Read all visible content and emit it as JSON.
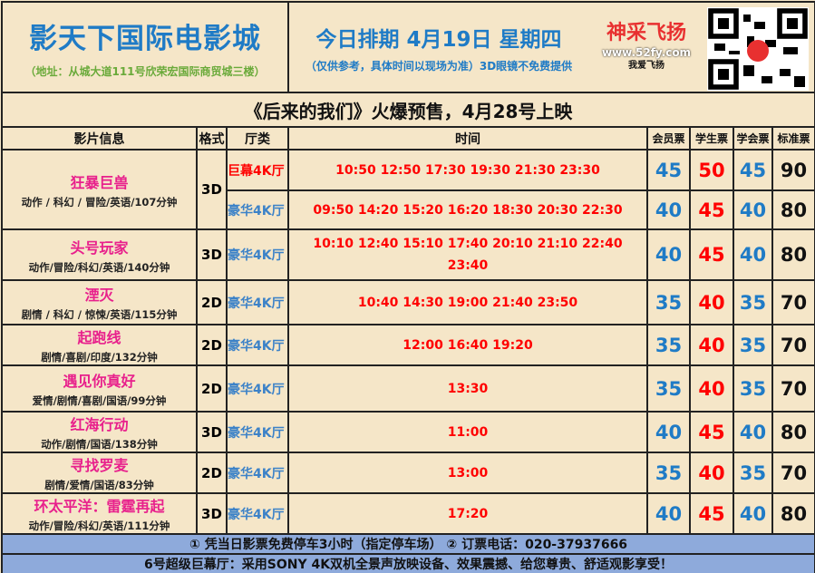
{
  "header": {
    "cinema_name": "影天下国际电影城",
    "address": "（地址：从城大道111号欣荣宏国际商贸城三楼）",
    "today": "今日排期  4月19日  星期四",
    "note": "（仅供参考，具体时间以现场为准）3D眼镜不免费提供",
    "qr_icon": "qr-code"
  },
  "banner": "《后来的我们》火爆预售，4月28号上映",
  "columns": {
    "info": "影片信息",
    "format": "格式",
    "hall": "厅类",
    "time": "时间",
    "member": "会员票",
    "student": "学生票",
    "society": "学会票",
    "standard": "标准票"
  },
  "films": [
    {
      "title": "狂暴巨兽",
      "info": "动作 / 科幻 / 冒险/英语/107分钟",
      "format": "3D",
      "shows": [
        {
          "hall": "巨幕4K厅",
          "times": "10:50 12:50 17:30 19:30 21:30 23:30",
          "member": "45",
          "student": "50",
          "society": "45",
          "standard": "90"
        },
        {
          "hall": "豪华4K厅",
          "times": "09:50 14:20 15:20 16:20 18:30 20:30 22:30",
          "member": "40",
          "student": "45",
          "society": "40",
          "standard": "80"
        }
      ]
    },
    {
      "title": "头号玩家",
      "info": "动作/冒险/科幻/英语/140分钟",
      "format": "3D",
      "hall": "豪华4K厅",
      "times": "10:10 12:40 15:10 17:40 20:10 21:10 22:40 23:40",
      "member": "40",
      "student": "45",
      "society": "40",
      "standard": "80"
    },
    {
      "title": "湮灭",
      "info": "剧情 / 科幻 / 惊悚/英语/115分钟",
      "format": "2D",
      "hall": "豪华4K厅",
      "times": "10:40 14:30 19:00 21:40 23:50",
      "member": "35",
      "student": "40",
      "society": "35",
      "standard": "70"
    },
    {
      "title": "起跑线",
      "info": "剧情/喜剧/印度/132分钟",
      "format": "2D",
      "hall": "豪华4K厅",
      "times": "12:00 16:40 19:20",
      "member": "35",
      "student": "40",
      "society": "35",
      "standard": "70"
    },
    {
      "title": "遇见你真好",
      "info": "爱情/剧情/喜剧/国语/99分钟",
      "format": "2D",
      "hall": "豪华4K厅",
      "times": "13:30",
      "member": "35",
      "student": "40",
      "society": "35",
      "standard": "70"
    },
    {
      "title": "红海行动",
      "info": "动作/剧情/国语/138分钟",
      "format": "3D",
      "hall": "豪华4K厅",
      "times": "11:00",
      "member": "40",
      "student": "45",
      "society": "40",
      "standard": "80"
    },
    {
      "title": "寻找罗麦",
      "info": "剧情/爱情/国语/83分钟",
      "format": "2D",
      "hall": "豪华4K厅",
      "times": "13:00",
      "member": "35",
      "student": "40",
      "society": "35",
      "standard": "70"
    },
    {
      "title": "环太平洋：雷霆再起",
      "info": "动作/冒险/科幻/英语/111分钟",
      "format": "3D",
      "hall": "豪华4K厅",
      "times": "17:20",
      "member": "40",
      "student": "45",
      "society": "40",
      "standard": "80"
    }
  ],
  "footer": {
    "line1": "① 凭当日影票免费停车3小时（指定停车场）  ② 订票电话：020-37937666",
    "line2": "6号超级巨幕厅：采用SONY 4K双机全景声放映设备、效果震撼、给您尊贵、舒适观影享受！"
  },
  "watermark": {
    "brand": "神采飞扬",
    "url": "www.52fy.com",
    "slogan": "我爱飞扬"
  },
  "colors": {
    "background": "#f5e6c8",
    "blue": "#1f7bc6",
    "red": "#ff0000",
    "title_pink": "#e8208c",
    "footer": "#8eaadb"
  }
}
